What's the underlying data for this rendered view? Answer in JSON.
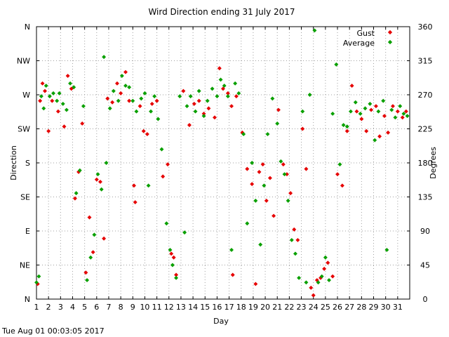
{
  "chart_data": {
    "type": "scatter",
    "title": "Wird Direction ending 31 July 2017",
    "xlabel": "Day",
    "ylabel_left": "Direction",
    "ylabel_right": "Degrees",
    "xlim": [
      1,
      32
    ],
    "ylim": [
      0,
      360
    ],
    "x_ticks": [
      "1",
      "2",
      "3",
      "4",
      "5",
      "6",
      "7",
      "8",
      "9",
      "10",
      "11",
      "12",
      "13",
      "14",
      "15",
      "16",
      "17",
      "18",
      "19",
      "20",
      "21",
      "22",
      "23",
      "24",
      "25",
      "26",
      "27",
      "28",
      "29",
      "30",
      "31"
    ],
    "y_ticks_left": [
      {
        "label": "N",
        "value": 0
      },
      {
        "label": "NE",
        "value": 45
      },
      {
        "label": "E",
        "value": 90
      },
      {
        "label": "SE",
        "value": 135
      },
      {
        "label": "S",
        "value": 180
      },
      {
        "label": "SW",
        "value": 225
      },
      {
        "label": "W",
        "value": 270
      },
      {
        "label": "NW",
        "value": 315
      },
      {
        "label": "N",
        "value": 360
      }
    ],
    "y_ticks_right": [
      "0",
      "45",
      "90",
      "135",
      "180",
      "225",
      "270",
      "315",
      "360"
    ],
    "grid": true,
    "legend_position": "top-right",
    "series": [
      {
        "name": "Gust",
        "color": "#e60000",
        "marker": "diamond",
        "points": [
          [
            1.1,
            20
          ],
          [
            1.3,
            262
          ],
          [
            1.5,
            285
          ],
          [
            1.7,
            275
          ],
          [
            2.0,
            222
          ],
          [
            2.3,
            262
          ],
          [
            2.8,
            248
          ],
          [
            3.3,
            228
          ],
          [
            3.6,
            295
          ],
          [
            3.9,
            278
          ],
          [
            4.2,
            133
          ],
          [
            4.5,
            168
          ],
          [
            4.8,
            232
          ],
          [
            5.1,
            35
          ],
          [
            5.4,
            108
          ],
          [
            5.7,
            62
          ],
          [
            6.0,
            158
          ],
          [
            6.3,
            155
          ],
          [
            6.6,
            80
          ],
          [
            6.9,
            265
          ],
          [
            7.3,
            260
          ],
          [
            7.7,
            285
          ],
          [
            8.0,
            272
          ],
          [
            8.4,
            300
          ],
          [
            8.7,
            262
          ],
          [
            9.1,
            150
          ],
          [
            9.2,
            128
          ],
          [
            9.6,
            255
          ],
          [
            9.9,
            222
          ],
          [
            10.2,
            218
          ],
          [
            10.6,
            258
          ],
          [
            11.0,
            262
          ],
          [
            11.5,
            162
          ],
          [
            11.9,
            178
          ],
          [
            12.2,
            60
          ],
          [
            12.4,
            55
          ],
          [
            12.6,
            32
          ],
          [
            13.2,
            275
          ],
          [
            13.7,
            230
          ],
          [
            14.1,
            258
          ],
          [
            14.5,
            262
          ],
          [
            14.9,
            245
          ],
          [
            15.3,
            252
          ],
          [
            15.8,
            240
          ],
          [
            16.2,
            305
          ],
          [
            16.5,
            278
          ],
          [
            16.9,
            272
          ],
          [
            17.2,
            255
          ],
          [
            17.3,
            32
          ],
          [
            17.6,
            268
          ],
          [
            18.1,
            220
          ],
          [
            18.5,
            172
          ],
          [
            18.9,
            152
          ],
          [
            19.2,
            20
          ],
          [
            19.5,
            168
          ],
          [
            19.8,
            178
          ],
          [
            20.1,
            130
          ],
          [
            20.4,
            160
          ],
          [
            20.7,
            110
          ],
          [
            21.1,
            250
          ],
          [
            21.5,
            178
          ],
          [
            21.8,
            165
          ],
          [
            22.1,
            140
          ],
          [
            22.4,
            92
          ],
          [
            22.7,
            78
          ],
          [
            23.1,
            225
          ],
          [
            23.4,
            172
          ],
          [
            23.8,
            15
          ],
          [
            24.0,
            5
          ],
          [
            24.3,
            25
          ],
          [
            24.6,
            28
          ],
          [
            24.9,
            40
          ],
          [
            25.2,
            48
          ],
          [
            25.6,
            30
          ],
          [
            26.0,
            165
          ],
          [
            26.4,
            150
          ],
          [
            26.8,
            222
          ],
          [
            27.2,
            282
          ],
          [
            27.6,
            248
          ],
          [
            28.0,
            238
          ],
          [
            28.4,
            222
          ],
          [
            28.8,
            250
          ],
          [
            29.2,
            255
          ],
          [
            29.5,
            215
          ],
          [
            29.9,
            242
          ],
          [
            30.2,
            220
          ],
          [
            30.6,
            255
          ],
          [
            31.0,
            248
          ],
          [
            31.4,
            240
          ],
          [
            31.7,
            248
          ]
        ]
      },
      {
        "name": "Average",
        "color": "#0aa000",
        "marker": "diamond",
        "points": [
          [
            1.0,
            22
          ],
          [
            1.2,
            30
          ],
          [
            1.4,
            268
          ],
          [
            1.6,
            252
          ],
          [
            1.8,
            282
          ],
          [
            2.1,
            268
          ],
          [
            2.4,
            272
          ],
          [
            2.7,
            262
          ],
          [
            2.9,
            272
          ],
          [
            3.2,
            258
          ],
          [
            3.5,
            250
          ],
          [
            3.8,
            285
          ],
          [
            4.1,
            280
          ],
          [
            4.3,
            140
          ],
          [
            4.6,
            170
          ],
          [
            4.9,
            255
          ],
          [
            5.2,
            25
          ],
          [
            5.5,
            55
          ],
          [
            5.8,
            85
          ],
          [
            6.1,
            165
          ],
          [
            6.4,
            145
          ],
          [
            6.6,
            320
          ],
          [
            6.8,
            180
          ],
          [
            7.1,
            252
          ],
          [
            7.4,
            275
          ],
          [
            7.8,
            262
          ],
          [
            8.1,
            295
          ],
          [
            8.4,
            282
          ],
          [
            8.7,
            280
          ],
          [
            9.0,
            262
          ],
          [
            9.3,
            248
          ],
          [
            9.7,
            265
          ],
          [
            10.0,
            272
          ],
          [
            10.3,
            150
          ],
          [
            10.5,
            248
          ],
          [
            10.8,
            268
          ],
          [
            11.1,
            238
          ],
          [
            11.4,
            198
          ],
          [
            11.8,
            100
          ],
          [
            12.1,
            65
          ],
          [
            12.3,
            45
          ],
          [
            12.6,
            28
          ],
          [
            12.9,
            268
          ],
          [
            13.3,
            88
          ],
          [
            13.5,
            255
          ],
          [
            13.8,
            268
          ],
          [
            14.2,
            248
          ],
          [
            14.5,
            275
          ],
          [
            14.9,
            242
          ],
          [
            15.2,
            262
          ],
          [
            15.6,
            278
          ],
          [
            16.0,
            268
          ],
          [
            16.3,
            290
          ],
          [
            16.6,
            282
          ],
          [
            16.9,
            268
          ],
          [
            17.2,
            65
          ],
          [
            17.5,
            285
          ],
          [
            17.8,
            272
          ],
          [
            18.2,
            218
          ],
          [
            18.5,
            100
          ],
          [
            18.9,
            180
          ],
          [
            19.2,
            130
          ],
          [
            19.6,
            72
          ],
          [
            19.9,
            150
          ],
          [
            20.2,
            218
          ],
          [
            20.6,
            265
          ],
          [
            21.0,
            232
          ],
          [
            21.3,
            182
          ],
          [
            21.6,
            165
          ],
          [
            21.9,
            130
          ],
          [
            22.2,
            78
          ],
          [
            22.5,
            60
          ],
          [
            22.8,
            28
          ],
          [
            23.1,
            248
          ],
          [
            23.4,
            22
          ],
          [
            23.7,
            270
          ],
          [
            24.1,
            355
          ],
          [
            24.4,
            22
          ],
          [
            24.7,
            30
          ],
          [
            25.0,
            55
          ],
          [
            25.3,
            25
          ],
          [
            25.6,
            245
          ],
          [
            25.9,
            310
          ],
          [
            26.2,
            178
          ],
          [
            26.5,
            230
          ],
          [
            26.8,
            228
          ],
          [
            27.1,
            248
          ],
          [
            27.5,
            260
          ],
          [
            27.9,
            245
          ],
          [
            28.3,
            252
          ],
          [
            28.7,
            258
          ],
          [
            29.1,
            210
          ],
          [
            29.4,
            248
          ],
          [
            29.8,
            262
          ],
          [
            30.1,
            65
          ],
          [
            30.5,
            250
          ],
          [
            30.8,
            240
          ],
          [
            31.2,
            255
          ],
          [
            31.5,
            245
          ],
          [
            31.8,
            242
          ]
        ]
      }
    ]
  },
  "footer_timestamp": "Tue Aug 01 00:03:05 2017"
}
